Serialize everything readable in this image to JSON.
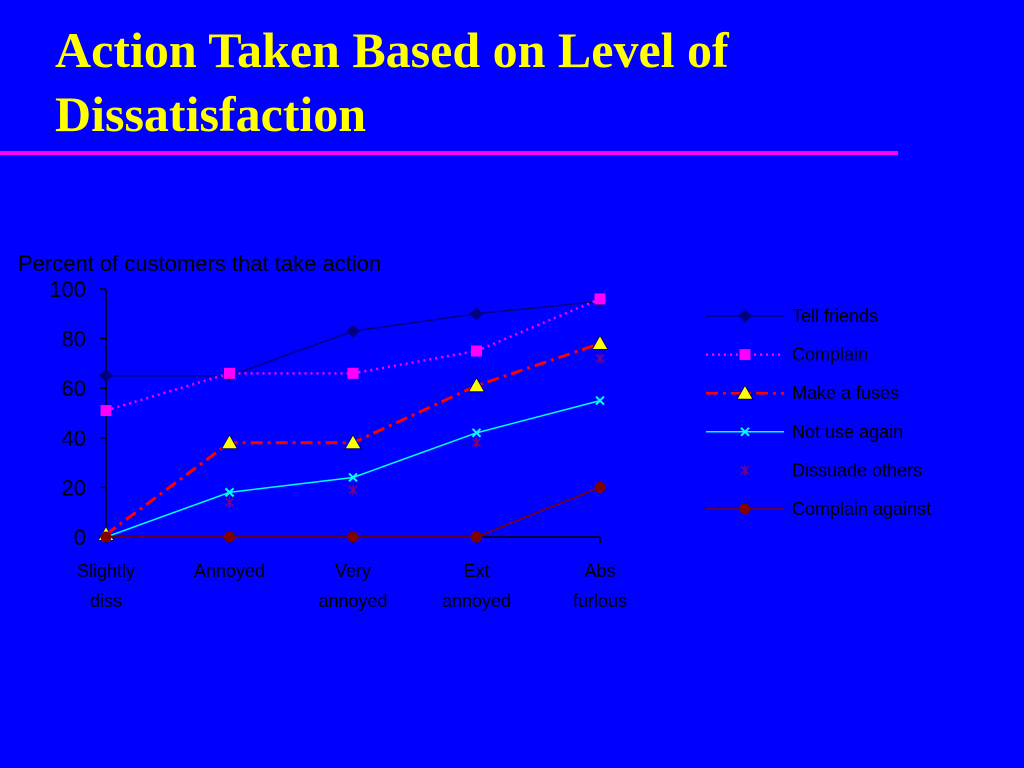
{
  "slide": {
    "title_line1": "Action Taken Based on Level of",
    "title_line2": "Dissatisfaction"
  },
  "colors": {
    "background": "#0000ff",
    "title": "#ffff00",
    "rule": "#ff00ff",
    "axis": "#000000",
    "text": "#000000"
  },
  "chart_data": {
    "type": "line",
    "ylabel": "Percent of customers that take action",
    "categories": [
      [
        "Slightly",
        "diss"
      ],
      [
        "Annoyed"
      ],
      [
        "Very",
        "annoyed"
      ],
      [
        "Ext",
        "annoyed"
      ],
      [
        "Abs",
        "furlous"
      ]
    ],
    "ylim": [
      0,
      100
    ],
    "yticks": [
      0,
      20,
      40,
      60,
      80,
      100
    ],
    "grid": false,
    "legend_position": "right",
    "series": [
      {
        "name": "Tell friends",
        "values": [
          65,
          65,
          83,
          90,
          95
        ],
        "color": "#000080",
        "dash": "solid",
        "marker": "diamond"
      },
      {
        "name": "Complain",
        "values": [
          51,
          66,
          66,
          75,
          96
        ],
        "color": "#ff00ff",
        "dash": "dotted",
        "marker": "square"
      },
      {
        "name": "Make a fuses",
        "values": [
          1,
          38,
          38,
          61,
          78
        ],
        "color": "#ff0000",
        "dash": "dashdot",
        "marker": "triangle"
      },
      {
        "name": "Not use again",
        "values": [
          0,
          18,
          24,
          42,
          55
        ],
        "color": "#00ffff",
        "dash": "solid",
        "marker": "x"
      },
      {
        "name": "Dissuade others",
        "values": [
          0,
          14,
          19,
          38,
          72
        ],
        "color": "#800080",
        "dash": "none",
        "marker": "star"
      },
      {
        "name": "Complain against",
        "values": [
          0,
          0,
          0,
          0,
          20
        ],
        "color": "#800000",
        "dash": "solid",
        "marker": "circle"
      }
    ]
  }
}
